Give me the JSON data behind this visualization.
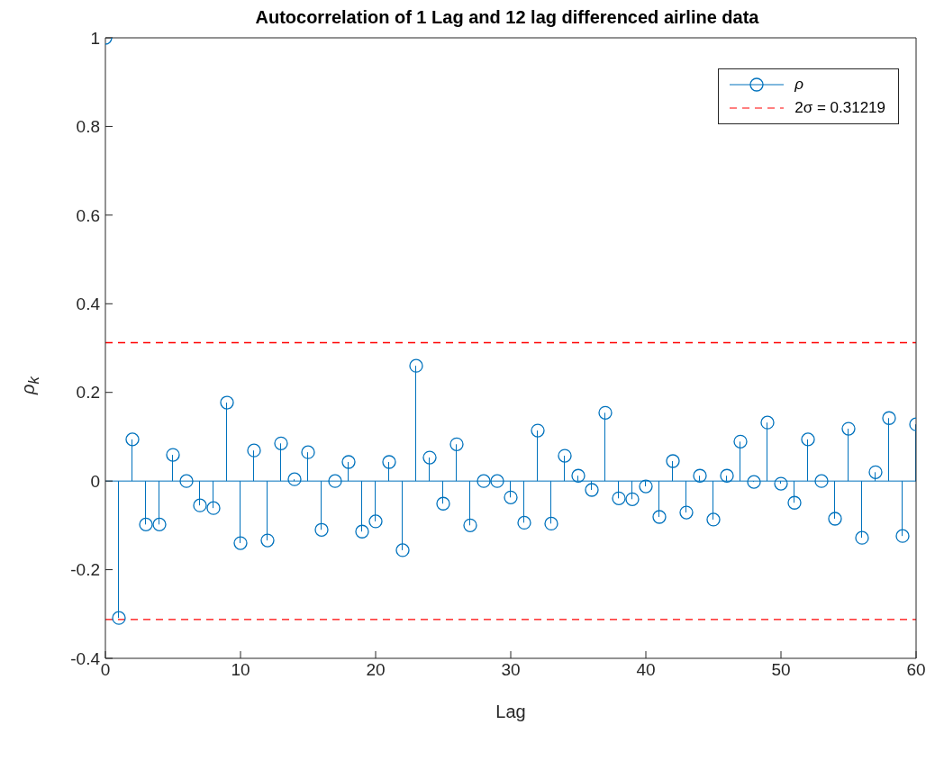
{
  "chart_data": {
    "type": "lollipop",
    "title": "Autocorrelation of 1 Lag and 12 lag differenced airline data",
    "xlabel": "Lag",
    "ylabel": "ρ$_{k}$",
    "x": [
      0,
      1,
      2,
      3,
      4,
      5,
      6,
      7,
      8,
      9,
      10,
      11,
      12,
      13,
      14,
      15,
      16,
      17,
      18,
      19,
      20,
      21,
      22,
      23,
      24,
      25,
      26,
      27,
      28,
      29,
      30,
      31,
      32,
      33,
      34,
      35,
      36,
      37,
      38,
      39,
      40,
      41,
      42,
      43,
      44,
      45,
      46,
      47,
      48,
      49,
      50,
      51,
      52,
      53,
      54,
      55,
      56,
      57,
      58,
      59,
      60
    ],
    "series": [
      {
        "name": "ρ",
        "color": "#0072bd",
        "values": [
          1,
          -0.309,
          0.094,
          -0.098,
          -0.098,
          0.059,
          0.0,
          -0.055,
          -0.061,
          0.177,
          -0.14,
          0.069,
          -0.134,
          0.085,
          0.004,
          0.065,
          -0.11,
          0.0,
          0.043,
          -0.114,
          -0.091,
          0.043,
          -0.156,
          0.26,
          0.053,
          -0.051,
          0.083,
          -0.1,
          0.0,
          0.0,
          -0.037,
          -0.094,
          0.114,
          -0.096,
          0.057,
          0.012,
          -0.02,
          0.154,
          -0.039,
          -0.041,
          -0.012,
          -0.081,
          0.045,
          -0.071,
          0.012,
          -0.087,
          0.012,
          0.089,
          -0.002,
          0.132,
          -0.006,
          -0.049,
          0.094,
          0.0,
          -0.085,
          0.118,
          -0.128,
          0.02,
          0.142,
          -0.124,
          0.128
        ]
      }
    ],
    "xlim": [
      0,
      60
    ],
    "xticks": [
      0,
      10,
      20,
      30,
      40,
      50,
      60
    ],
    "ylim": [
      -0.4,
      1
    ],
    "yticks": [
      -0.4,
      -0.2,
      0,
      0.2,
      0.4,
      0.6,
      0.8,
      1
    ],
    "ref_lines": [
      {
        "axis": "y",
        "value": 0.31219,
        "label": "2σ = 0.31219",
        "color": "#ff0000",
        "line_style": "dashed"
      },
      {
        "axis": "y",
        "value": -0.31219,
        "label": null,
        "color": "#ff0000",
        "line_style": "dashed"
      },
      {
        "axis": "y",
        "value": 0,
        "label": null,
        "color": "#0072bd",
        "line_style": "solid"
      }
    ],
    "marker": "circle",
    "legend": "top right"
  }
}
